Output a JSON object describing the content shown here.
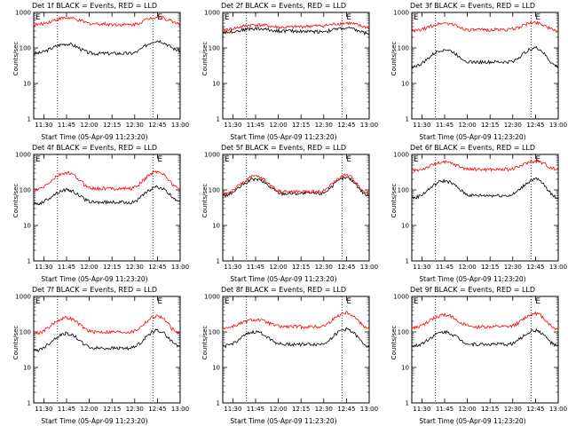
{
  "chart_data": [
    {
      "type": "line",
      "title": "Det 1f BLACK = Events, RED = LLD",
      "ylabel": "Counts/sec",
      "xlabel": "Start Time (05-Apr-09 11:23:20)",
      "x_ticks": [
        "11:30",
        "11:45",
        "12:00",
        "12:15",
        "12:30",
        "12:45",
        "13:00"
      ],
      "y_ticks": [
        "1",
        "10",
        "100",
        "1000"
      ],
      "ylim": [
        1,
        1000
      ],
      "log_y": true,
      "marker_label": "E",
      "series": [
        {
          "color": "#000000",
          "x": [
            11.4,
            11.75,
            12.05,
            12.45,
            12.75,
            13.0
          ],
          "y": [
            70,
            130,
            70,
            70,
            160,
            85
          ]
        },
        {
          "color": "#ff0000",
          "x": [
            11.4,
            11.75,
            12.05,
            12.45,
            12.75,
            13.0
          ],
          "y": [
            450,
            700,
            480,
            450,
            750,
            500
          ]
        }
      ]
    },
    {
      "type": "line",
      "title": "Det 2f BLACK = Events, RED = LLD",
      "ylabel": "Counts/sec",
      "xlabel": "Start Time (05-Apr-09 11:23:20)",
      "x_ticks": [
        "11:30",
        "11:45",
        "12:00",
        "12:15",
        "12:30",
        "12:45",
        "13:00"
      ],
      "y_ticks": [
        "1",
        "10",
        "100",
        "1000"
      ],
      "ylim": [
        1,
        1000
      ],
      "log_y": true,
      "marker_label": "E",
      "series": [
        {
          "color": "#000000",
          "x": [
            11.4,
            11.75,
            12.05,
            12.45,
            12.75,
            13.0
          ],
          "y": [
            280,
            350,
            300,
            290,
            360,
            260
          ]
        },
        {
          "color": "#ff0000",
          "x": [
            11.4,
            11.75,
            12.05,
            12.45,
            12.75,
            13.0
          ],
          "y": [
            330,
            450,
            380,
            420,
            500,
            380
          ]
        }
      ]
    },
    {
      "type": "line",
      "title": "Det 3f BLACK = Events, RED = LLD",
      "ylabel": "Counts/sec",
      "xlabel": "Start Time (05-Apr-09 11:23:20)",
      "x_ticks": [
        "11:30",
        "11:45",
        "12:00",
        "12:15",
        "12:30",
        "12:45",
        "13:00"
      ],
      "y_ticks": [
        "1",
        "10",
        "100",
        "1000"
      ],
      "ylim": [
        1,
        1000
      ],
      "log_y": true,
      "marker_label": "E",
      "series": [
        {
          "color": "#000000",
          "x": [
            11.4,
            11.75,
            12.05,
            12.45,
            12.75,
            13.0
          ],
          "y": [
            30,
            90,
            40,
            40,
            100,
            30
          ]
        },
        {
          "color": "#ff0000",
          "x": [
            11.4,
            11.75,
            12.05,
            12.45,
            12.75,
            13.0
          ],
          "y": [
            300,
            500,
            320,
            330,
            520,
            300
          ]
        }
      ]
    },
    {
      "type": "line",
      "title": "Det 4f BLACK = Events, RED = LLD",
      "ylabel": "Counts/sec",
      "xlabel": "Start Time (05-Apr-09 11:23:20)",
      "x_ticks": [
        "11:30",
        "11:45",
        "12:00",
        "12:15",
        "12:30",
        "12:45",
        "13:00"
      ],
      "y_ticks": [
        "1",
        "10",
        "100",
        "1000"
      ],
      "ylim": [
        1,
        1000
      ],
      "log_y": true,
      "marker_label": "E",
      "series": [
        {
          "color": "#000000",
          "x": [
            11.4,
            11.75,
            12.05,
            12.45,
            12.75,
            13.0
          ],
          "y": [
            40,
            100,
            45,
            45,
            120,
            50
          ]
        },
        {
          "color": "#ff0000",
          "x": [
            11.4,
            11.75,
            12.05,
            12.45,
            12.75,
            13.0
          ],
          "y": [
            100,
            300,
            110,
            110,
            330,
            110
          ]
        }
      ]
    },
    {
      "type": "line",
      "title": "Det 5f BLACK = Events, RED = LLD",
      "ylabel": "Counts/sec",
      "xlabel": "Start Time (05-Apr-09 11:23:20)",
      "x_ticks": [
        "11:30",
        "11:45",
        "12:00",
        "12:15",
        "12:30",
        "12:45",
        "13:00"
      ],
      "y_ticks": [
        "1",
        "10",
        "100",
        "1000"
      ],
      "ylim": [
        1,
        1000
      ],
      "log_y": true,
      "marker_label": "E",
      "series": [
        {
          "color": "#000000",
          "x": [
            11.4,
            11.75,
            12.05,
            12.45,
            12.75,
            13.0
          ],
          "y": [
            70,
            200,
            80,
            80,
            220,
            70
          ]
        },
        {
          "color": "#ff0000",
          "x": [
            11.4,
            11.75,
            12.05,
            12.45,
            12.75,
            13.0
          ],
          "y": [
            80,
            240,
            90,
            90,
            260,
            80
          ]
        }
      ]
    },
    {
      "type": "line",
      "title": "Det 6f BLACK = Events, RED = LLD",
      "ylabel": "Counts/sec",
      "xlabel": "Start Time (05-Apr-09 11:23:20)",
      "x_ticks": [
        "11:30",
        "11:45",
        "12:00",
        "12:15",
        "12:30",
        "12:45",
        "13:00"
      ],
      "y_ticks": [
        "1",
        "10",
        "100",
        "1000"
      ],
      "ylim": [
        1,
        1000
      ],
      "log_y": true,
      "marker_label": "E",
      "series": [
        {
          "color": "#000000",
          "x": [
            11.4,
            11.75,
            12.05,
            12.45,
            12.75,
            13.0
          ],
          "y": [
            60,
            180,
            70,
            70,
            200,
            60
          ]
        },
        {
          "color": "#ff0000",
          "x": [
            11.4,
            11.75,
            12.05,
            12.45,
            12.75,
            13.0
          ],
          "y": [
            350,
            600,
            380,
            380,
            650,
            380
          ]
        }
      ]
    },
    {
      "type": "line",
      "title": "Det 7f BLACK = Events, RED = LLD",
      "ylabel": "Counts/sec",
      "xlabel": "Start Time (05-Apr-09 11:23:20)",
      "x_ticks": [
        "11:30",
        "11:45",
        "12:00",
        "12:15",
        "12:30",
        "12:45",
        "13:00"
      ],
      "y_ticks": [
        "1",
        "10",
        "100",
        "1000"
      ],
      "ylim": [
        1,
        1000
      ],
      "log_y": true,
      "marker_label": "E",
      "series": [
        {
          "color": "#000000",
          "x": [
            11.4,
            11.75,
            12.05,
            12.45,
            12.75,
            13.0
          ],
          "y": [
            30,
            90,
            35,
            35,
            110,
            40
          ]
        },
        {
          "color": "#ff0000",
          "x": [
            11.4,
            11.75,
            12.05,
            12.45,
            12.75,
            13.0
          ],
          "y": [
            90,
            250,
            100,
            100,
            280,
            90
          ]
        }
      ]
    },
    {
      "type": "line",
      "title": "Det 8f BLACK = Events, RED = LLD",
      "ylabel": "Counts/sec",
      "xlabel": "Start Time (05-Apr-09 11:23:20)",
      "x_ticks": [
        "11:30",
        "11:45",
        "12:00",
        "12:15",
        "12:30",
        "12:45",
        "13:00"
      ],
      "y_ticks": [
        "1",
        "10",
        "100",
        "1000"
      ],
      "ylim": [
        1,
        1000
      ],
      "log_y": true,
      "marker_label": "E",
      "series": [
        {
          "color": "#000000",
          "x": [
            11.4,
            11.75,
            12.05,
            12.45,
            12.75,
            13.0
          ],
          "y": [
            40,
            100,
            45,
            45,
            120,
            40
          ]
        },
        {
          "color": "#ff0000",
          "x": [
            11.4,
            11.75,
            12.05,
            12.45,
            12.75,
            13.0
          ],
          "y": [
            130,
            220,
            140,
            140,
            350,
            130
          ]
        }
      ]
    },
    {
      "type": "line",
      "title": "Det 9f BLACK = Events, RED = LLD",
      "ylabel": "Counts/sec",
      "xlabel": "Start Time (05-Apr-09 11:23:20)",
      "x_ticks": [
        "11:30",
        "11:45",
        "12:00",
        "12:15",
        "12:30",
        "12:45",
        "13:00"
      ],
      "y_ticks": [
        "1",
        "10",
        "100",
        "1000"
      ],
      "ylim": [
        1,
        1000
      ],
      "log_y": true,
      "marker_label": "E",
      "series": [
        {
          "color": "#000000",
          "x": [
            11.4,
            11.75,
            12.05,
            12.45,
            12.75,
            13.0
          ],
          "y": [
            40,
            100,
            45,
            45,
            110,
            40
          ]
        },
        {
          "color": "#ff0000",
          "x": [
            11.4,
            11.75,
            12.05,
            12.45,
            12.75,
            13.0
          ],
          "y": [
            130,
            300,
            140,
            140,
            330,
            120
          ]
        }
      ]
    }
  ]
}
